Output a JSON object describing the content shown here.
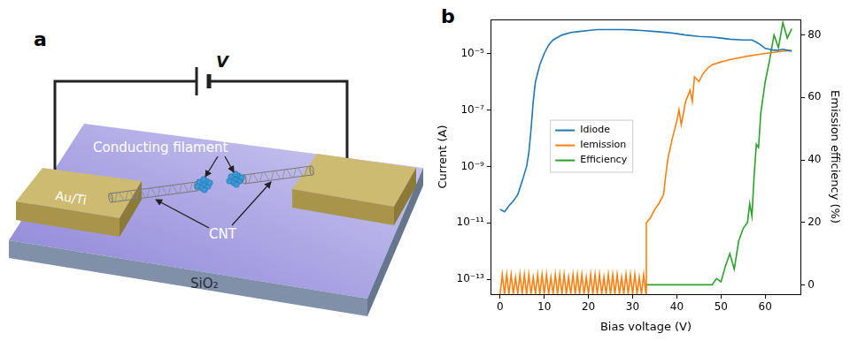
{
  "panel_a": {
    "label": "a",
    "voltage": "V",
    "filament": "Conducting filament",
    "cnt": "CNT",
    "electrode": "Au/Ti",
    "substrate": "SiO₂"
  },
  "chart_data": {
    "label": "b",
    "type": "line",
    "x_label": "Bias voltage (V)",
    "y_label": "Current (A)",
    "y2_label": "Emission efficiency (%)",
    "log": "y",
    "grid": false,
    "legend": "center left",
    "xlim": [
      -2,
      68
    ],
    "xticks": [
      0,
      10,
      20,
      30,
      40,
      50,
      60
    ],
    "ylim": [
      3e-14,
      0.00016
    ],
    "yticks": [
      {
        "value": 1e-13,
        "label": "10⁻¹³"
      },
      {
        "value": 1e-11,
        "label": "10⁻¹¹"
      },
      {
        "value": 1e-09,
        "label": "10⁻⁹"
      },
      {
        "value": 1e-07,
        "label": "10⁻⁷"
      },
      {
        "value": 1e-05,
        "label": "10⁻⁵"
      }
    ],
    "y2lim": [
      -3,
      85
    ],
    "y2ticks": [
      0,
      20,
      40,
      60,
      80
    ],
    "series": [
      {
        "name": "Idiode",
        "color": "#1f77b4",
        "axis": "y",
        "x": [
          0,
          1,
          2,
          3,
          4,
          5,
          6,
          6.5,
          7,
          7.5,
          8,
          9,
          10,
          11,
          12,
          14,
          16,
          18,
          20,
          22,
          25,
          28,
          30,
          32,
          35,
          38,
          40,
          42,
          45,
          48,
          50,
          52,
          55,
          57,
          58,
          59,
          60,
          61,
          62,
          63,
          64,
          65,
          66
        ],
        "values": [
          3e-11,
          2.5e-11,
          4e-11,
          6e-11,
          1e-10,
          3e-10,
          1e-09,
          3e-09,
          2e-08,
          2e-07,
          1e-06,
          4e-06,
          1e-05,
          2e-05,
          3e-05,
          4.5e-05,
          5.5e-05,
          6e-05,
          6.5e-05,
          7e-05,
          7e-05,
          7e-05,
          6.8e-05,
          6.5e-05,
          6e-05,
          5.5e-05,
          5e-05,
          4.5e-05,
          4e-05,
          3.8e-05,
          3.5e-05,
          3.2e-05,
          3e-05,
          3e-05,
          2.5e-05,
          2e-05,
          1.5e-05,
          1.4e-05,
          1.3e-05,
          1.3e-05,
          1.4e-05,
          1.3e-05,
          1.2e-05
        ]
      },
      {
        "name": "Iemission",
        "color": "#ff7f0e",
        "axis": "y",
        "x": [
          0,
          0.5,
          1,
          1.5,
          2,
          2.5,
          3,
          3.5,
          4,
          4.5,
          5,
          5.5,
          6,
          6.5,
          7,
          7.5,
          8,
          8.5,
          9,
          9.5,
          10,
          10.5,
          11,
          11.5,
          12,
          12.5,
          13,
          13.5,
          14,
          14.5,
          15,
          15.5,
          16,
          16.5,
          17,
          17.5,
          18,
          18.5,
          19,
          19.5,
          20,
          20.5,
          21,
          21.5,
          22,
          22.5,
          23,
          23.5,
          24,
          24.5,
          25,
          25.5,
          26,
          26.5,
          27,
          27.5,
          28,
          28.5,
          29,
          29.5,
          30,
          30.5,
          31,
          31.5,
          32,
          32.5,
          33,
          33.1,
          34,
          35,
          36,
          37,
          37.5,
          38,
          39,
          40,
          40.5,
          41,
          42,
          43,
          43.5,
          44,
          45,
          46,
          47,
          48,
          50,
          52,
          54,
          56,
          58,
          60,
          62,
          64,
          66
        ],
        "values": [
          3e-14,
          1.5e-13,
          3e-14,
          1.5e-13,
          3e-14,
          1.5e-13,
          3e-14,
          1.2e-13,
          3e-14,
          1.5e-13,
          3e-14,
          1.5e-13,
          3e-14,
          1.5e-13,
          3e-14,
          1.2e-13,
          3e-14,
          1.5e-13,
          3e-14,
          1.5e-13,
          3e-14,
          1.5e-13,
          3e-14,
          1.2e-13,
          3e-14,
          1.5e-13,
          3e-14,
          1.5e-13,
          3e-14,
          1.5e-13,
          3e-14,
          1.2e-13,
          3e-14,
          1.5e-13,
          3e-14,
          1.5e-13,
          3e-14,
          1.5e-13,
          3e-14,
          1.2e-13,
          3e-14,
          1.5e-13,
          3e-14,
          1.5e-13,
          3e-14,
          1.5e-13,
          3e-14,
          1.2e-13,
          3e-14,
          1.5e-13,
          3e-14,
          1.5e-13,
          3e-14,
          1.5e-13,
          3e-14,
          1.2e-13,
          3e-14,
          1.5e-13,
          3e-14,
          1.5e-13,
          3e-14,
          1.5e-13,
          3e-14,
          1.2e-13,
          3e-14,
          1.5e-13,
          3e-14,
          1e-11,
          1.5e-11,
          3e-11,
          5e-11,
          1e-10,
          5e-10,
          2e-09,
          1e-08,
          4e-08,
          1e-07,
          3e-08,
          2e-07,
          5e-07,
          2e-07,
          1.5e-06,
          1e-06,
          2e-06,
          3e-06,
          4e-06,
          5e-06,
          6e-06,
          7e-06,
          8e-06,
          9e-06,
          1e-05,
          1.1e-05,
          1.2e-05,
          1.3e-05
        ]
      },
      {
        "name": "Efficiency",
        "color": "#2ca02c",
        "axis": "y2",
        "x": [
          33,
          40,
          45,
          48,
          49,
          50,
          51,
          52,
          53,
          54,
          55,
          56,
          56.5,
          57,
          57.5,
          58,
          58.5,
          59,
          60,
          61,
          62,
          63,
          64,
          65,
          66
        ],
        "values": [
          0,
          0,
          0,
          0,
          2,
          1,
          6,
          10,
          5,
          14,
          18,
          20,
          26,
          22,
          35,
          45,
          44,
          55,
          65,
          72,
          80,
          76,
          84,
          79,
          82
        ]
      }
    ]
  }
}
